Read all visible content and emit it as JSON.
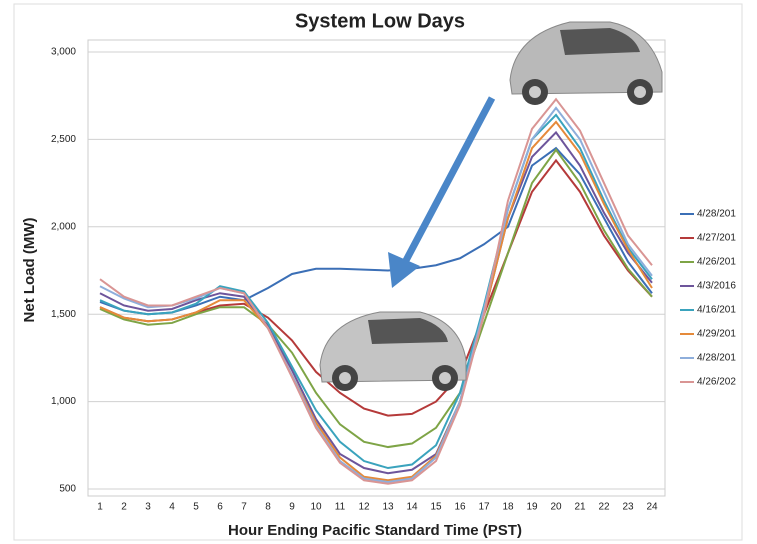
{
  "chart_data": {
    "type": "line",
    "title": "System Low Days",
    "x_label": "Hour Ending Pacific Standard Time (PST)",
    "y_label": "Net Load (MW)",
    "categories": [
      "1",
      "2",
      "3",
      "4",
      "5",
      "6",
      "7",
      "8",
      "9",
      "10",
      "11",
      "12",
      "13",
      "14",
      "15",
      "16",
      "17",
      "18",
      "19",
      "20",
      "21",
      "22",
      "23",
      "24"
    ],
    "ylim": [
      500,
      3000
    ],
    "yticks": [
      {
        "value": 500,
        "label": "500"
      },
      {
        "value": 1000,
        "label": "1,000"
      },
      {
        "value": 1500,
        "label": "1,500"
      },
      {
        "value": 2000,
        "label": "2,000"
      },
      {
        "value": 2500,
        "label": "2,500"
      },
      {
        "value": 3000,
        "label": "3,000"
      }
    ],
    "grid": true,
    "legend": "right",
    "series": [
      {
        "name": "4/28/201",
        "color": "#3b6fb6",
        "values": [
          1570,
          1520,
          1500,
          1510,
          1550,
          1600,
          1580,
          1650,
          1730,
          1760,
          1760,
          1755,
          1750,
          1760,
          1780,
          1820,
          1900,
          2000,
          2350,
          2450,
          2300,
          2050,
          1800,
          1620
        ]
      },
      {
        "name": "4/27/201",
        "color": "#b53a3a",
        "values": [
          1540,
          1480,
          1460,
          1470,
          1510,
          1550,
          1560,
          1480,
          1350,
          1170,
          1050,
          960,
          920,
          930,
          1000,
          1150,
          1500,
          1850,
          2200,
          2380,
          2200,
          1950,
          1750,
          1600
        ]
      },
      {
        "name": "4/26/201",
        "color": "#7ea446",
        "values": [
          1530,
          1470,
          1440,
          1450,
          1500,
          1540,
          1540,
          1440,
          1280,
          1050,
          870,
          770,
          740,
          760,
          850,
          1050,
          1450,
          1850,
          2250,
          2440,
          2250,
          1980,
          1760,
          1600
        ]
      },
      {
        "name": "4/3/2016",
        "color": "#6d559b",
        "values": [
          1620,
          1550,
          1520,
          1530,
          1580,
          1620,
          1600,
          1430,
          1180,
          900,
          700,
          620,
          590,
          610,
          700,
          1000,
          1500,
          2050,
          2400,
          2540,
          2350,
          2080,
          1850,
          1680
        ]
      },
      {
        "name": "4/16/201",
        "color": "#3aa3bd",
        "values": [
          1580,
          1520,
          1500,
          1510,
          1560,
          1660,
          1630,
          1450,
          1200,
          950,
          770,
          660,
          620,
          640,
          750,
          1050,
          1550,
          2100,
          2500,
          2640,
          2450,
          2150,
          1880,
          1700
        ]
      },
      {
        "name": "4/29/201",
        "color": "#e58a3a",
        "values": [
          1540,
          1480,
          1460,
          1470,
          1510,
          1580,
          1580,
          1420,
          1150,
          880,
          680,
          570,
          550,
          570,
          690,
          1000,
          1500,
          2050,
          2450,
          2600,
          2420,
          2130,
          1870,
          1650
        ]
      },
      {
        "name": "4/28/201",
        "color": "#8eaedb",
        "values": [
          1660,
          1590,
          1540,
          1550,
          1590,
          1650,
          1620,
          1420,
          1150,
          860,
          660,
          560,
          540,
          560,
          680,
          1000,
          1530,
          2100,
          2500,
          2680,
          2500,
          2200,
          1900,
          1720
        ]
      },
      {
        "name": "4/26/202",
        "color": "#d99594",
        "values": [
          1700,
          1600,
          1550,
          1550,
          1600,
          1650,
          1620,
          1420,
          1140,
          850,
          650,
          550,
          530,
          550,
          660,
          980,
          1500,
          2150,
          2560,
          2730,
          2550,
          2250,
          1950,
          1780
        ]
      }
    ]
  }
}
